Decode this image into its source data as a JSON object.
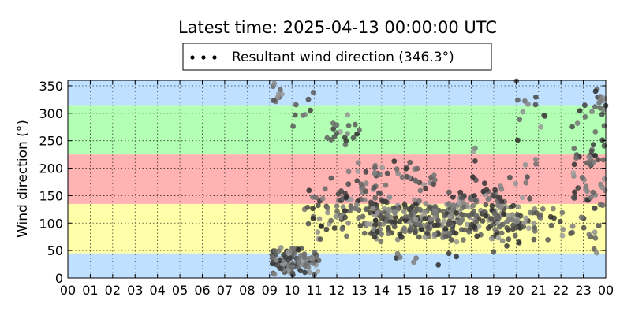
{
  "chart_data": {
    "type": "scatter",
    "title": "Latest time: 2025-04-13 00:00:00 UTC",
    "ylabel": "Wind direction (°)",
    "xlabel": "",
    "x_range_hours": [
      0,
      24
    ],
    "ylim": [
      0,
      360
    ],
    "grid": true,
    "legend": {
      "placement": "top-center",
      "label": "Resultant wind direction (346.3°)"
    },
    "x_tick_labels": [
      "00",
      "01",
      "02",
      "03",
      "04",
      "05",
      "06",
      "07",
      "08",
      "09",
      "10",
      "11",
      "12",
      "13",
      "14",
      "15",
      "16",
      "17",
      "18",
      "19",
      "20",
      "21",
      "22",
      "23",
      "00"
    ],
    "y_ticks": [
      0,
      50,
      100,
      150,
      200,
      250,
      300,
      350
    ],
    "bands": [
      {
        "from": 0,
        "to": 45,
        "color": "#bfe1ff"
      },
      {
        "from": 45,
        "to": 135,
        "color": "#ffffaa"
      },
      {
        "from": 135,
        "to": 225,
        "color": "#ffb3b3"
      },
      {
        "from": 225,
        "to": 315,
        "color": "#b3ffb3"
      },
      {
        "from": 315,
        "to": 360,
        "color": "#bfe1ff"
      }
    ],
    "clusters": [
      {
        "h": [
          9.0,
          11.2
        ],
        "d": [
          0,
          60
        ],
        "n": 95
      },
      {
        "h": [
          9.1,
          9.6
        ],
        "d": [
          290,
          360
        ],
        "n": 10
      },
      {
        "h": [
          10.0,
          11.0
        ],
        "d": [
          255,
          350
        ],
        "n": 8
      },
      {
        "h": [
          10.5,
          12.5
        ],
        "d": [
          50,
          170
        ],
        "n": 40
      },
      {
        "h": [
          11.5,
          13.0
        ],
        "d": [
          170,
          330
        ],
        "n": 20
      },
      {
        "h": [
          12.0,
          14.0
        ],
        "d": [
          60,
          220
        ],
        "n": 60
      },
      {
        "h": [
          13.5,
          17.5
        ],
        "d": [
          60,
          150
        ],
        "n": 220
      },
      {
        "h": [
          13.5,
          16.5
        ],
        "d": [
          150,
          220
        ],
        "n": 30
      },
      {
        "h": [
          14.5,
          17.5
        ],
        "d": [
          10,
          60
        ],
        "n": 8
      },
      {
        "h": [
          17.0,
          19.5
        ],
        "d": [
          60,
          170
        ],
        "n": 90
      },
      {
        "h": [
          18.0,
          21.0
        ],
        "d": [
          20,
          240
        ],
        "n": 60
      },
      {
        "h": [
          19.0,
          21.0
        ],
        "d": [
          60,
          140
        ],
        "n": 40
      },
      {
        "h": [
          20.0,
          21.3
        ],
        "d": [
          250,
          360
        ],
        "n": 12
      },
      {
        "h": [
          21.0,
          22.5
        ],
        "d": [
          60,
          160
        ],
        "n": 14
      },
      {
        "h": [
          22.5,
          24.0
        ],
        "d": [
          0,
          360
        ],
        "n": 70
      },
      {
        "h": [
          23.5,
          24.0
        ],
        "d": [
          300,
          360
        ],
        "n": 10
      }
    ]
  }
}
